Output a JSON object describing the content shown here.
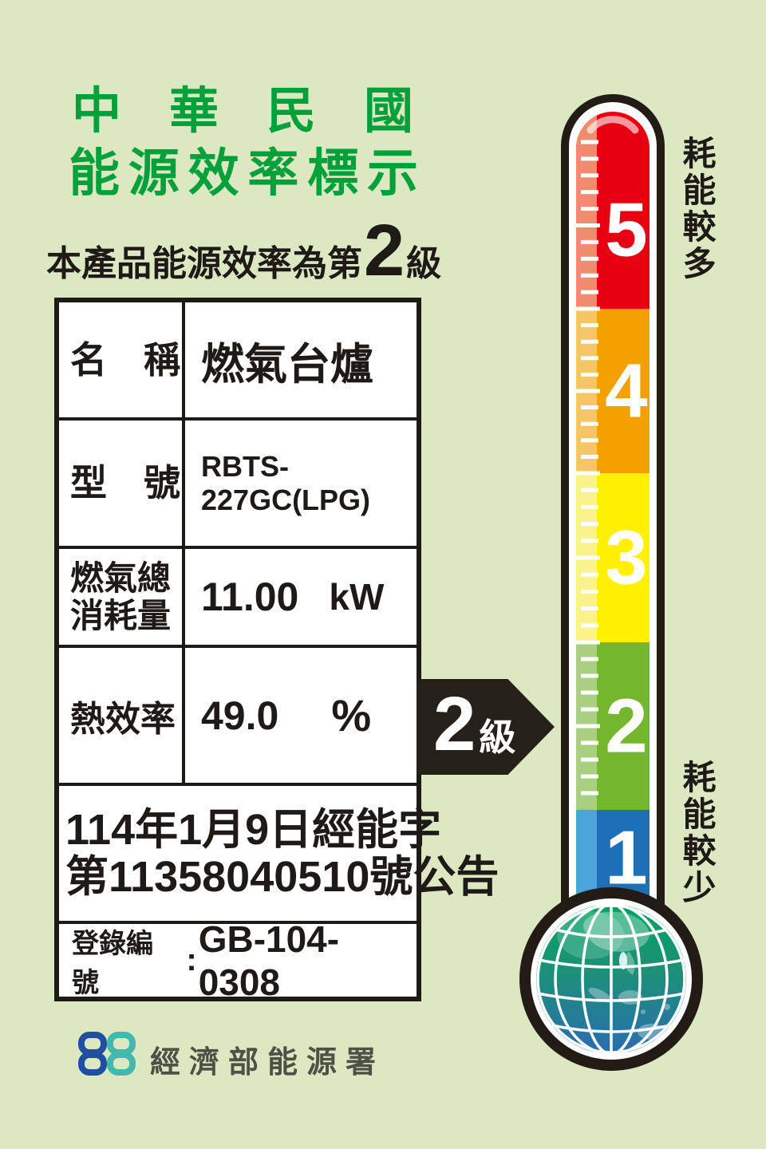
{
  "label": {
    "bg_color": "#DCE8C2",
    "title_line1": "中華民國",
    "title_line2": "能源效率標示",
    "title_color": "#00A13B",
    "subtitle_prefix": "本產品能源效率為第",
    "subtitle_grade": "2",
    "subtitle_suffix": "級"
  },
  "spec_table": {
    "rows": [
      {
        "label": "名　稱",
        "value": "燃氣台爐"
      },
      {
        "label": "型　號",
        "value": "RBTS-227GC(LPG)"
      },
      {
        "label_line1": "燃氣總",
        "label_line2": "消耗量",
        "value": "11.00",
        "unit": "kW"
      },
      {
        "label": "熱效率",
        "value": "49.0",
        "unit": "%"
      }
    ],
    "announcement_line1": "114年1月9日經能字",
    "announcement_line2": "第11358040510號公告",
    "registration_label": "登錄編號",
    "registration_separator": ":",
    "registration_value": "GB-104-0308"
  },
  "grade_arrow": {
    "grade": "2",
    "suffix": "級",
    "color": "#26201B"
  },
  "thermometer": {
    "top_label": "耗能較多",
    "bottom_label": "耗能較少",
    "levels": [
      {
        "num": "5",
        "color": "#E60012",
        "highlight": "#EF8C6E"
      },
      {
        "num": "4",
        "color": "#F4A000",
        "highlight": "#F7C468"
      },
      {
        "num": "3",
        "color": "#FFF100",
        "highlight": "#FAF28C"
      },
      {
        "num": "2",
        "color": "#72B72D",
        "highlight": "#A8D07E"
      },
      {
        "num": "1",
        "color": "#1C70B8",
        "highlight": "#4BA4DA"
      }
    ],
    "globe_colors": {
      "top": "#00A45F",
      "middle": "#1D9078",
      "bottom": "#2A6CB3"
    },
    "outline_color": "#231B15"
  },
  "footer": {
    "agency_name": "經濟部能源署",
    "logo_blue": "#1F4FA0",
    "logo_teal": "#43B8AC"
  }
}
